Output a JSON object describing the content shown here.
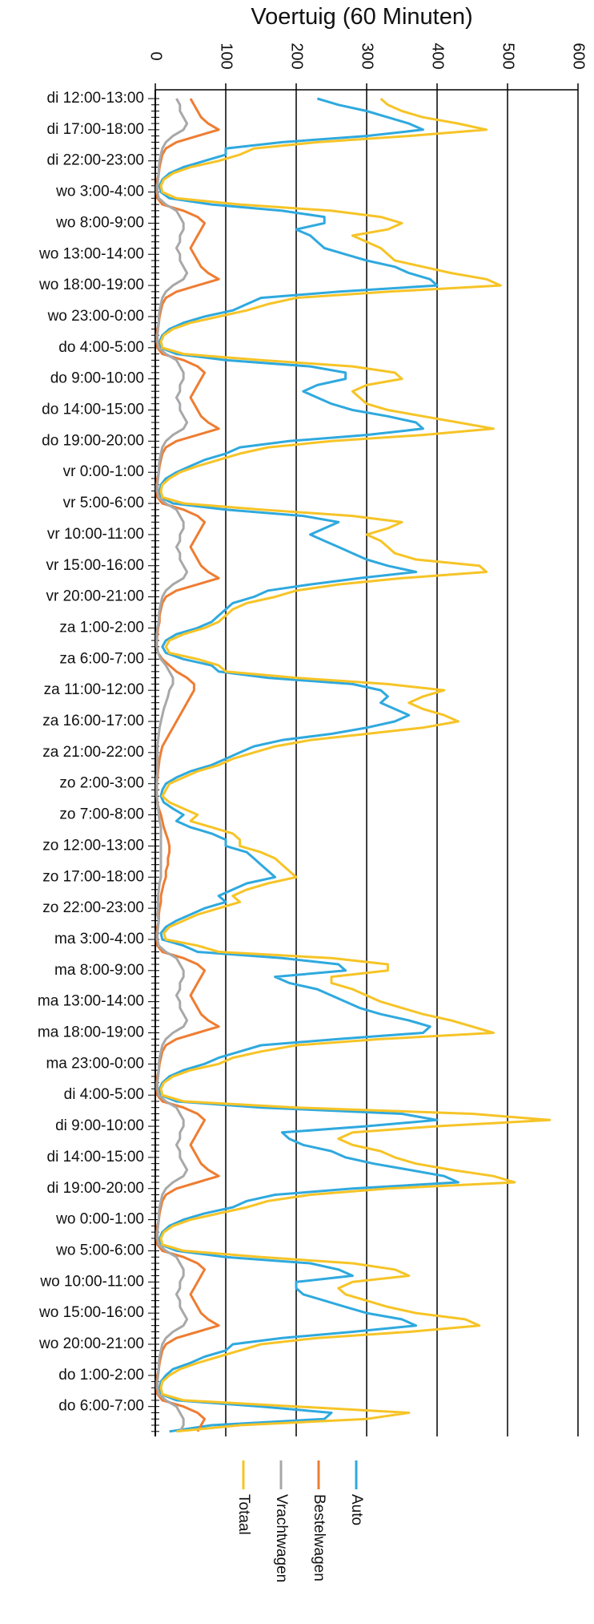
{
  "chart_data": {
    "type": "line",
    "orientation": "horizontal",
    "title": "Voertuig (60 Minuten)",
    "categories": [
      "di 12:00-13:00",
      null,
      null,
      null,
      null,
      "di 17:00-18:00",
      null,
      null,
      null,
      null,
      "di 22:00-23:00",
      null,
      null,
      null,
      null,
      "wo 3:00-4:00",
      null,
      null,
      null,
      null,
      "wo 8:00-9:00",
      null,
      null,
      null,
      null,
      "wo 13:00-14:00",
      null,
      null,
      null,
      null,
      "wo 18:00-19:00",
      null,
      null,
      null,
      null,
      "wo 23:00-0:00",
      null,
      null,
      null,
      null,
      "do 4:00-5:00",
      null,
      null,
      null,
      null,
      "do 9:00-10:00",
      null,
      null,
      null,
      null,
      "do 14:00-15:00",
      null,
      null,
      null,
      null,
      "do 19:00-20:00",
      null,
      null,
      null,
      null,
      "vr 0:00-1:00",
      null,
      null,
      null,
      null,
      "vr 5:00-6:00",
      null,
      null,
      null,
      null,
      "vr 10:00-11:00",
      null,
      null,
      null,
      null,
      "vr 15:00-16:00",
      null,
      null,
      null,
      null,
      "vr 20:00-21:00",
      null,
      null,
      null,
      null,
      "za 1:00-2:00",
      null,
      null,
      null,
      null,
      "za 6:00-7:00",
      null,
      null,
      null,
      null,
      "za 11:00-12:00",
      null,
      null,
      null,
      null,
      "za 16:00-17:00",
      null,
      null,
      null,
      null,
      "za 21:00-22:00",
      null,
      null,
      null,
      null,
      "zo 2:00-3:00",
      null,
      null,
      null,
      null,
      "zo 7:00-8:00",
      null,
      null,
      null,
      null,
      "zo 12:00-13:00",
      null,
      null,
      null,
      null,
      "zo 17:00-18:00",
      null,
      null,
      null,
      null,
      "zo 22:00-23:00",
      null,
      null,
      null,
      null,
      "ma 3:00-4:00",
      null,
      null,
      null,
      null,
      "ma 8:00-9:00",
      null,
      null,
      null,
      null,
      "ma 13:00-14:00",
      null,
      null,
      null,
      null,
      "ma 18:00-19:00",
      null,
      null,
      null,
      null,
      "ma 23:00-0:00",
      null,
      null,
      null,
      null,
      "di 4:00-5:00",
      null,
      null,
      null,
      null,
      "di 9:00-10:00",
      null,
      null,
      null,
      null,
      "di 14:00-15:00",
      null,
      null,
      null,
      null,
      "di 19:00-20:00",
      null,
      null,
      null,
      null,
      "wo 0:00-1:00",
      null,
      null,
      null,
      null,
      "wo 5:00-6:00",
      null,
      null,
      null,
      null,
      "wo 10:00-11:00",
      null,
      null,
      null,
      null,
      "wo 15:00-16:00",
      null,
      null,
      null,
      null,
      "wo 20:00-21:00",
      null,
      null,
      null,
      null,
      "do 1:00-2:00",
      null,
      null,
      null,
      null,
      "do 6:00-7:00",
      null,
      null,
      null,
      null
    ],
    "series": [
      {
        "name": "Auto",
        "color": "#2fa9de",
        "values": [
          230,
          260,
          300,
          330,
          360,
          380,
          300,
          180,
          100,
          100,
          70,
          40,
          20,
          10,
          6,
          8,
          20,
          80,
          180,
          240,
          240,
          200,
          220,
          230,
          240,
          270,
          300,
          340,
          360,
          390,
          400,
          260,
          150,
          130,
          110,
          70,
          40,
          20,
          10,
          6,
          8,
          30,
          100,
          220,
          270,
          270,
          230,
          210,
          230,
          250,
          280,
          330,
          370,
          380,
          300,
          190,
          120,
          100,
          70,
          50,
          30,
          15,
          8,
          6,
          8,
          25,
          100,
          210,
          260,
          240,
          220,
          240,
          260,
          280,
          300,
          330,
          370,
          290,
          220,
          160,
          140,
          110,
          100,
          90,
          80,
          60,
          30,
          15,
          10,
          15,
          40,
          80,
          90,
          160,
          280,
          320,
          330,
          320,
          340,
          360,
          340,
          300,
          250,
          180,
          140,
          120,
          100,
          80,
          50,
          30,
          15,
          10,
          8,
          12,
          25,
          40,
          30,
          50,
          80,
          100,
          100,
          130,
          140,
          150,
          160,
          170,
          130,
          110,
          90,
          100,
          70,
          50,
          30,
          15,
          8,
          10,
          40,
          60,
          180,
          260,
          270,
          170,
          190,
          230,
          250,
          270,
          290,
          320,
          360,
          390,
          380,
          260,
          150,
          120,
          90,
          70,
          40,
          20,
          10,
          6,
          8,
          30,
          150,
          350,
          400,
          300,
          180,
          190,
          210,
          250,
          270,
          310,
          360,
          410,
          430,
          280,
          170,
          130,
          110,
          70,
          40,
          20,
          10,
          6,
          8,
          30,
          100,
          220,
          260,
          280,
          200,
          200,
          210,
          240,
          270,
          300,
          350,
          370,
          280,
          180,
          110,
          100,
          70,
          50,
          25,
          15,
          8,
          6,
          8,
          30,
          150,
          250,
          240,
          80,
          20
        ]
      },
      {
        "name": "Bestelwagen",
        "color": "#ee7d32",
        "values": [
          50,
          55,
          60,
          65,
          75,
          90,
          60,
          30,
          15,
          10,
          8,
          6,
          5,
          3,
          2,
          2,
          3,
          10,
          40,
          60,
          70,
          65,
          60,
          55,
          50,
          55,
          60,
          65,
          75,
          90,
          60,
          30,
          15,
          10,
          8,
          6,
          5,
          3,
          2,
          2,
          3,
          10,
          40,
          60,
          70,
          65,
          60,
          55,
          50,
          55,
          60,
          65,
          75,
          90,
          60,
          30,
          15,
          10,
          8,
          6,
          5,
          3,
          2,
          2,
          3,
          10,
          40,
          60,
          70,
          65,
          60,
          55,
          50,
          55,
          60,
          65,
          75,
          90,
          60,
          30,
          15,
          10,
          8,
          6,
          6,
          4,
          3,
          2,
          2,
          4,
          10,
          20,
          30,
          45,
          55,
          55,
          50,
          45,
          40,
          35,
          30,
          25,
          20,
          15,
          10,
          8,
          6,
          5,
          4,
          3,
          2,
          2,
          2,
          3,
          5,
          8,
          10,
          12,
          15,
          18,
          20,
          20,
          18,
          18,
          15,
          15,
          12,
          10,
          8,
          8,
          6,
          5,
          5,
          3,
          2,
          2,
          3,
          10,
          40,
          60,
          70,
          65,
          60,
          55,
          50,
          55,
          60,
          65,
          75,
          90,
          60,
          30,
          15,
          10,
          8,
          6,
          5,
          3,
          2,
          2,
          3,
          10,
          40,
          60,
          70,
          65,
          60,
          55,
          50,
          55,
          60,
          65,
          75,
          90,
          60,
          30,
          15,
          10,
          8,
          6,
          5,
          3,
          2,
          2,
          3,
          10,
          40,
          60,
          70,
          65,
          60,
          55,
          50,
          55,
          60,
          65,
          75,
          90,
          60,
          30,
          15,
          10,
          8,
          6,
          5,
          3,
          2,
          2,
          3,
          10,
          40,
          60,
          70,
          65,
          60
        ]
      },
      {
        "name": "Vrachtwagen",
        "color": "#a8a8a8",
        "values": [
          30,
          35,
          35,
          40,
          45,
          40,
          25,
          15,
          10,
          8,
          6,
          5,
          5,
          4,
          3,
          3,
          5,
          15,
          30,
          35,
          40,
          40,
          35,
          35,
          30,
          35,
          35,
          40,
          45,
          40,
          25,
          15,
          10,
          8,
          6,
          5,
          5,
          4,
          3,
          3,
          5,
          15,
          30,
          35,
          40,
          40,
          35,
          35,
          30,
          35,
          35,
          40,
          45,
          40,
          25,
          15,
          10,
          8,
          6,
          5,
          5,
          4,
          3,
          3,
          5,
          15,
          30,
          35,
          40,
          40,
          35,
          35,
          30,
          35,
          35,
          40,
          45,
          40,
          25,
          15,
          10,
          8,
          6,
          5,
          5,
          3,
          2,
          2,
          2,
          4,
          8,
          15,
          20,
          25,
          25,
          20,
          18,
          15,
          12,
          10,
          8,
          6,
          5,
          4,
          3,
          3,
          3,
          3,
          3,
          2,
          2,
          2,
          2,
          3,
          4,
          5,
          6,
          8,
          8,
          8,
          8,
          8,
          8,
          8,
          8,
          8,
          6,
          5,
          4,
          4,
          4,
          3,
          5,
          4,
          3,
          3,
          5,
          15,
          30,
          35,
          40,
          40,
          35,
          35,
          30,
          35,
          35,
          40,
          45,
          40,
          25,
          15,
          10,
          8,
          6,
          5,
          5,
          4,
          3,
          3,
          5,
          15,
          30,
          35,
          40,
          40,
          35,
          35,
          30,
          35,
          35,
          40,
          45,
          40,
          25,
          15,
          10,
          8,
          6,
          5,
          5,
          4,
          3,
          3,
          5,
          15,
          30,
          35,
          40,
          40,
          35,
          35,
          30,
          35,
          35,
          40,
          45,
          40,
          25,
          15,
          10,
          8,
          6,
          5,
          5,
          4,
          3,
          3,
          5,
          15,
          30,
          35,
          40,
          40,
          35
        ]
      },
      {
        "name": "Totaal",
        "color": "#f6c427",
        "values": [
          320,
          330,
          350,
          380,
          430,
          470,
          360,
          230,
          140,
          120,
          90,
          50,
          25,
          12,
          8,
          10,
          30,
          120,
          250,
          320,
          350,
          330,
          280,
          300,
          320,
          330,
          340,
          380,
          420,
          470,
          490,
          330,
          200,
          160,
          130,
          90,
          50,
          25,
          12,
          8,
          10,
          40,
          150,
          280,
          340,
          350,
          300,
          280,
          290,
          300,
          330,
          380,
          430,
          480,
          380,
          250,
          160,
          120,
          90,
          60,
          35,
          20,
          10,
          8,
          10,
          40,
          150,
          280,
          350,
          330,
          300,
          320,
          330,
          340,
          370,
          460,
          470,
          350,
          260,
          200,
          170,
          130,
          110,
          100,
          90,
          70,
          40,
          20,
          15,
          20,
          60,
          90,
          100,
          200,
          330,
          410,
          380,
          360,
          380,
          410,
          430,
          380,
          300,
          220,
          170,
          140,
          110,
          90,
          60,
          40,
          20,
          15,
          10,
          20,
          40,
          60,
          50,
          80,
          110,
          120,
          120,
          150,
          170,
          180,
          190,
          200,
          160,
          130,
          110,
          120,
          90,
          60,
          40,
          20,
          12,
          15,
          60,
          90,
          250,
          330,
          330,
          250,
          250,
          280,
          300,
          320,
          350,
          380,
          420,
          450,
          480,
          320,
          200,
          150,
          110,
          90,
          50,
          25,
          12,
          8,
          10,
          40,
          200,
          450,
          560,
          400,
          280,
          260,
          280,
          320,
          340,
          370,
          420,
          480,
          510,
          330,
          220,
          160,
          130,
          90,
          50,
          25,
          12,
          8,
          10,
          40,
          150,
          280,
          340,
          360,
          280,
          260,
          270,
          300,
          330,
          370,
          440,
          460,
          360,
          230,
          150,
          120,
          90,
          60,
          35,
          20,
          10,
          8,
          10,
          40,
          200,
          360,
          300,
          120,
          30
        ]
      }
    ],
    "xlim": [
      0,
      600
    ],
    "xticks": [
      0,
      100,
      200,
      300,
      400,
      500,
      600
    ],
    "grid": true
  }
}
